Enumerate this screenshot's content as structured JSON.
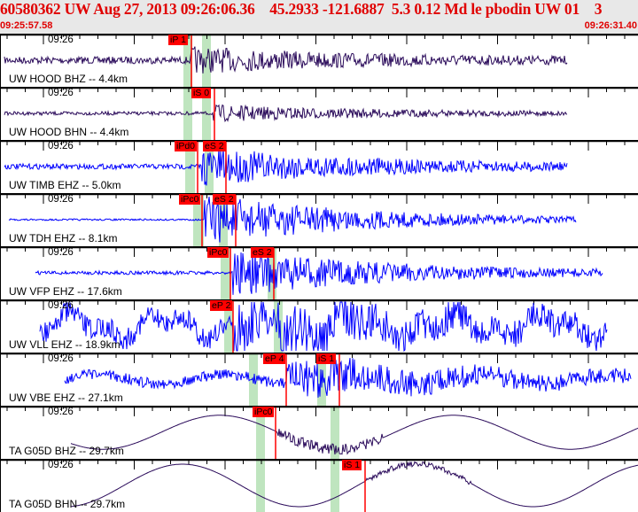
{
  "header": {
    "title": "60580362 UW Aug 27, 2013 09:26:06.36    45.2933 -121.6887  5.3 0.12 Md le pbodin UW 01    3",
    "start_time": "09:25:57.58",
    "end_time": "09:26:31.40"
  },
  "colors": {
    "header_text": "#e00000",
    "pick": "#ff0000",
    "trace_blue": "#0000ff",
    "trace_dark": "#2a0a5a",
    "band_green": "#bfe5bf",
    "header_bg": "#e8e8e8"
  },
  "traces": [
    {
      "station": "UW HOOD BHZ -- 4.4km",
      "time_label": "09:26",
      "picks": [
        "iP 1"
      ]
    },
    {
      "station": "UW HOOD BHN -- 4.4km",
      "time_label": "09:26",
      "picks": [
        "iS 0"
      ]
    },
    {
      "station": "UW TIMB EHZ -- 5.0km",
      "time_label": "09:26",
      "picks": [
        "iPd0",
        "eS 2"
      ]
    },
    {
      "station": "UW TDH EHZ -- 8.1km",
      "time_label": "09:26",
      "picks": [
        "iPc0",
        "eS 2"
      ]
    },
    {
      "station": "UW VFP EHZ -- 17.6km",
      "time_label": "09:26",
      "picks": [
        "iPc0",
        "eS 2"
      ]
    },
    {
      "station": "UW VLL EHZ -- 18.9km",
      "time_label": "09:26",
      "picks": [
        "eP 2"
      ]
    },
    {
      "station": "UW VBE EHZ -- 27.1km",
      "time_label": "09:26",
      "picks": [
        "eP 4",
        "iS 1"
      ]
    },
    {
      "station": "TA G05D BHZ -- 29.7km",
      "time_label": "09:26",
      "picks": [
        "iPc0"
      ]
    },
    {
      "station": "TA G05D BHN -- 29.7km",
      "time_label": "09:26",
      "picks": [
        "iS 1"
      ]
    }
  ]
}
